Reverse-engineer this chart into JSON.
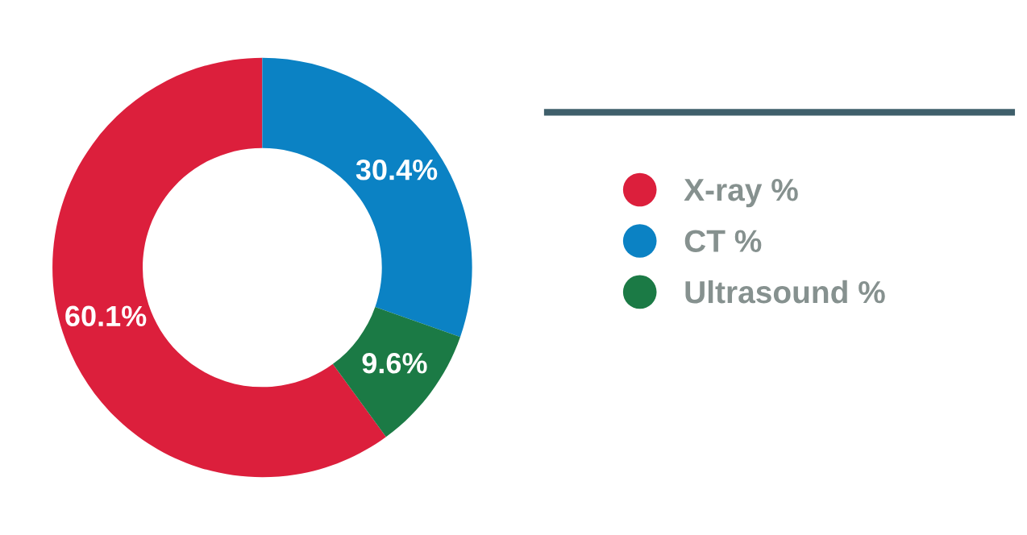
{
  "chart_data": {
    "type": "donut",
    "categories": [
      "X-ray %",
      "CT %",
      "Ultrasound %"
    ],
    "values": [
      60.1,
      30.4,
      9.6
    ],
    "colors": [
      "#dc1f3c",
      "#0b82c4",
      "#1b7a45"
    ],
    "value_labels": [
      "60.1%",
      "30.4%",
      "9.6%"
    ],
    "legend": "right"
  }
}
